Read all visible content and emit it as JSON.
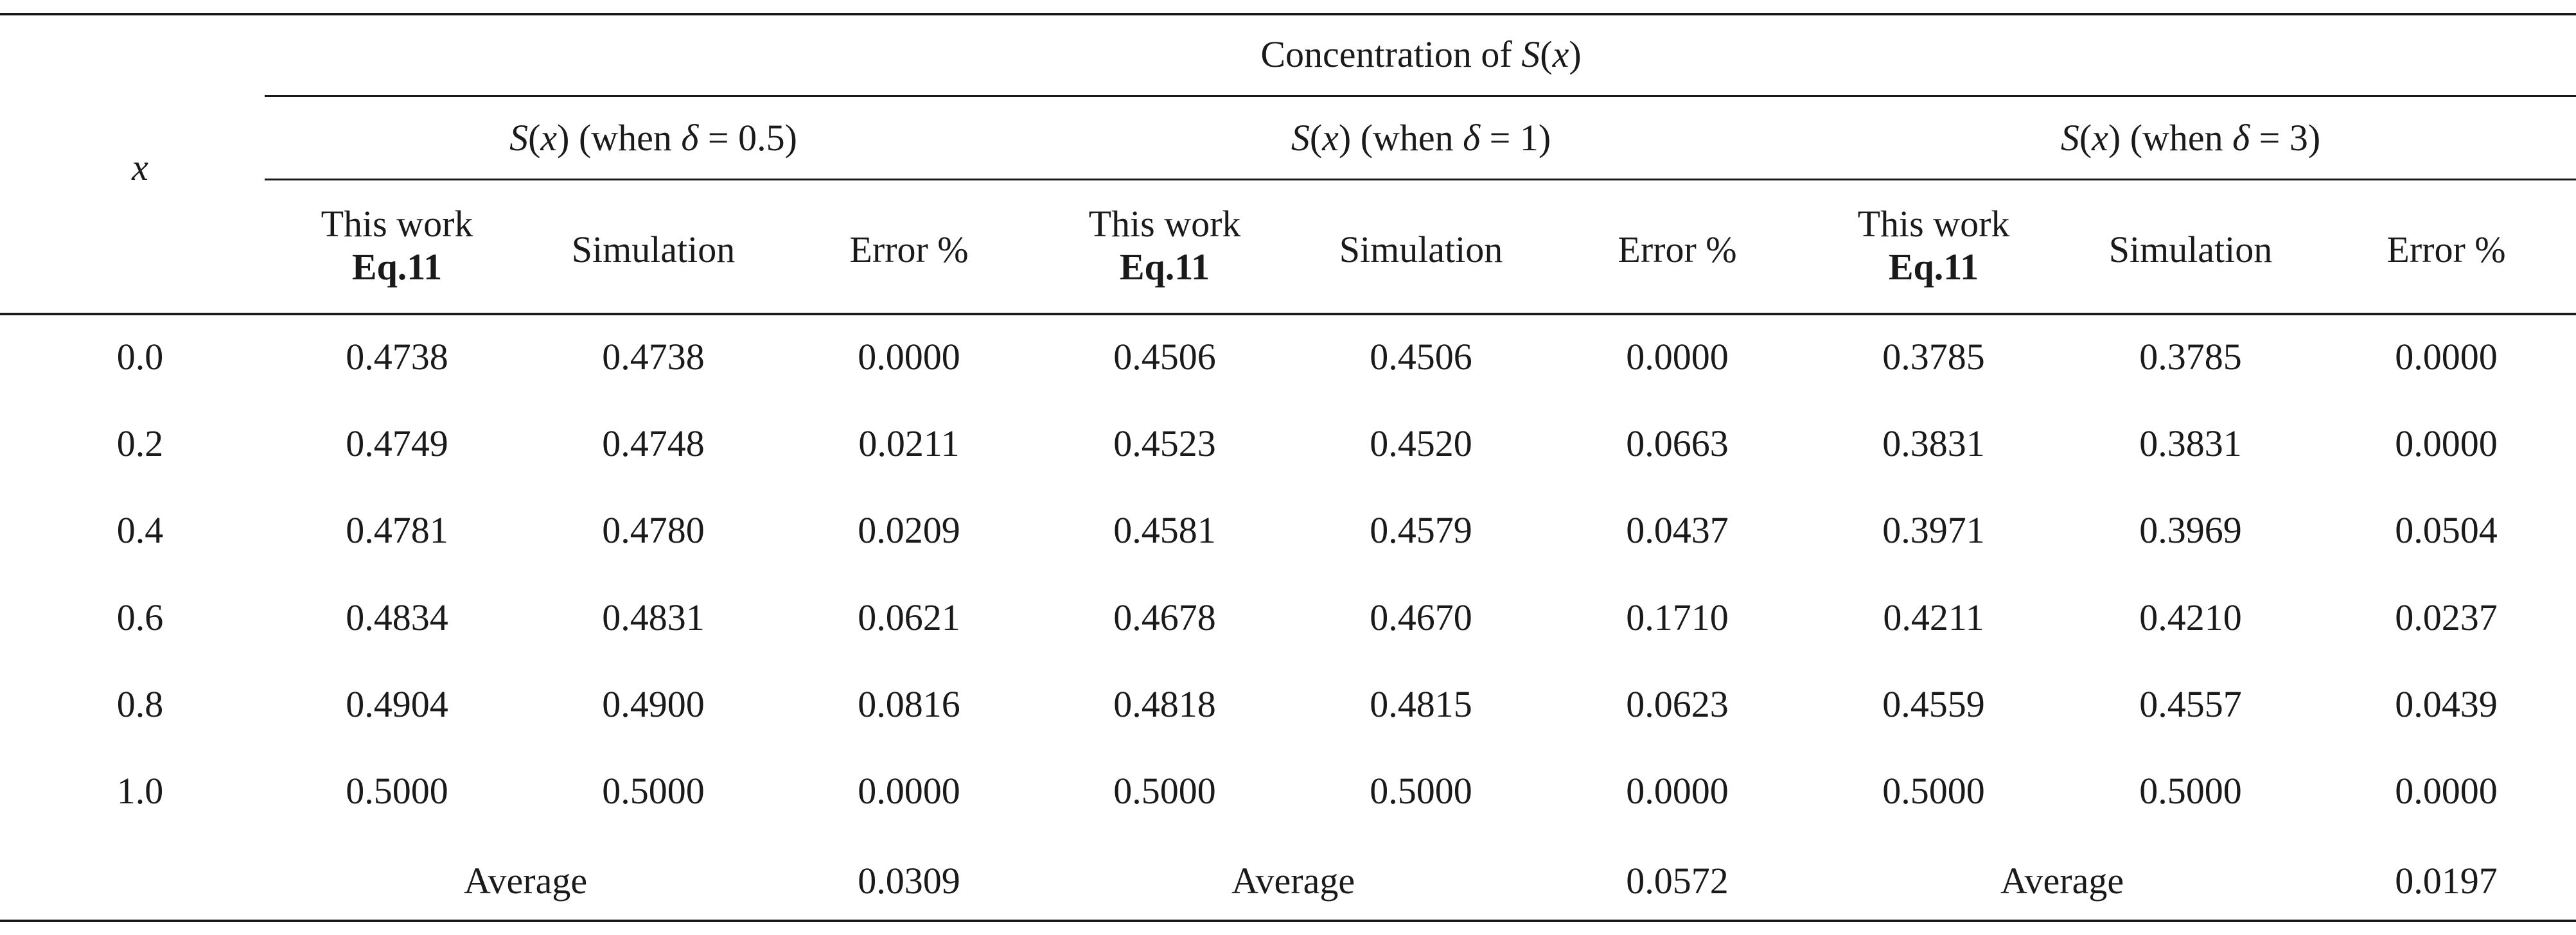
{
  "table": {
    "corner_label": "x",
    "super_header": {
      "prefix": "Concentration of ",
      "fn": "S",
      "arg_open": "(",
      "arg": "x",
      "arg_close": ")"
    },
    "groups": [
      {
        "fn": "S",
        "arg_open": "(",
        "arg": "x",
        "mid": ") (when ",
        "delta": "δ",
        "eq": " = 0.5)"
      },
      {
        "fn": "S",
        "arg_open": "(",
        "arg": "x",
        "mid": ") (when ",
        "delta": "δ",
        "eq": " = 1)"
      },
      {
        "fn": "S",
        "arg_open": "(",
        "arg": "x",
        "mid": ") (when ",
        "delta": "δ",
        "eq": " = 3)"
      }
    ],
    "subheaders": {
      "this_work_line1": "This work",
      "this_work_line2": "Eq.11",
      "simulation": "Simulation",
      "error": "Error %"
    },
    "rows": [
      {
        "x": "0.0",
        "v": [
          "0.4738",
          "0.4738",
          "0.0000",
          "0.4506",
          "0.4506",
          "0.0000",
          "0.3785",
          "0.3785",
          "0.0000"
        ]
      },
      {
        "x": "0.2",
        "v": [
          "0.4749",
          "0.4748",
          "0.0211",
          "0.4523",
          "0.4520",
          "0.0663",
          "0.3831",
          "0.3831",
          "0.0000"
        ]
      },
      {
        "x": "0.4",
        "v": [
          "0.4781",
          "0.4780",
          "0.0209",
          "0.4581",
          "0.4579",
          "0.0437",
          "0.3971",
          "0.3969",
          "0.0504"
        ]
      },
      {
        "x": "0.6",
        "v": [
          "0.4834",
          "0.4831",
          "0.0621",
          "0.4678",
          "0.4670",
          "0.1710",
          "0.4211",
          "0.4210",
          "0.0237"
        ]
      },
      {
        "x": "0.8",
        "v": [
          "0.4904",
          "0.4900",
          "0.0816",
          "0.4818",
          "0.4815",
          "0.0623",
          "0.4559",
          "0.4557",
          "0.0439"
        ]
      },
      {
        "x": "1.0",
        "v": [
          "0.5000",
          "0.5000",
          "0.0000",
          "0.5000",
          "0.5000",
          "0.0000",
          "0.5000",
          "0.5000",
          "0.0000"
        ]
      }
    ],
    "average_row": {
      "label": "Average",
      "values": [
        "0.0309",
        "0.0572",
        "0.0197"
      ]
    }
  }
}
